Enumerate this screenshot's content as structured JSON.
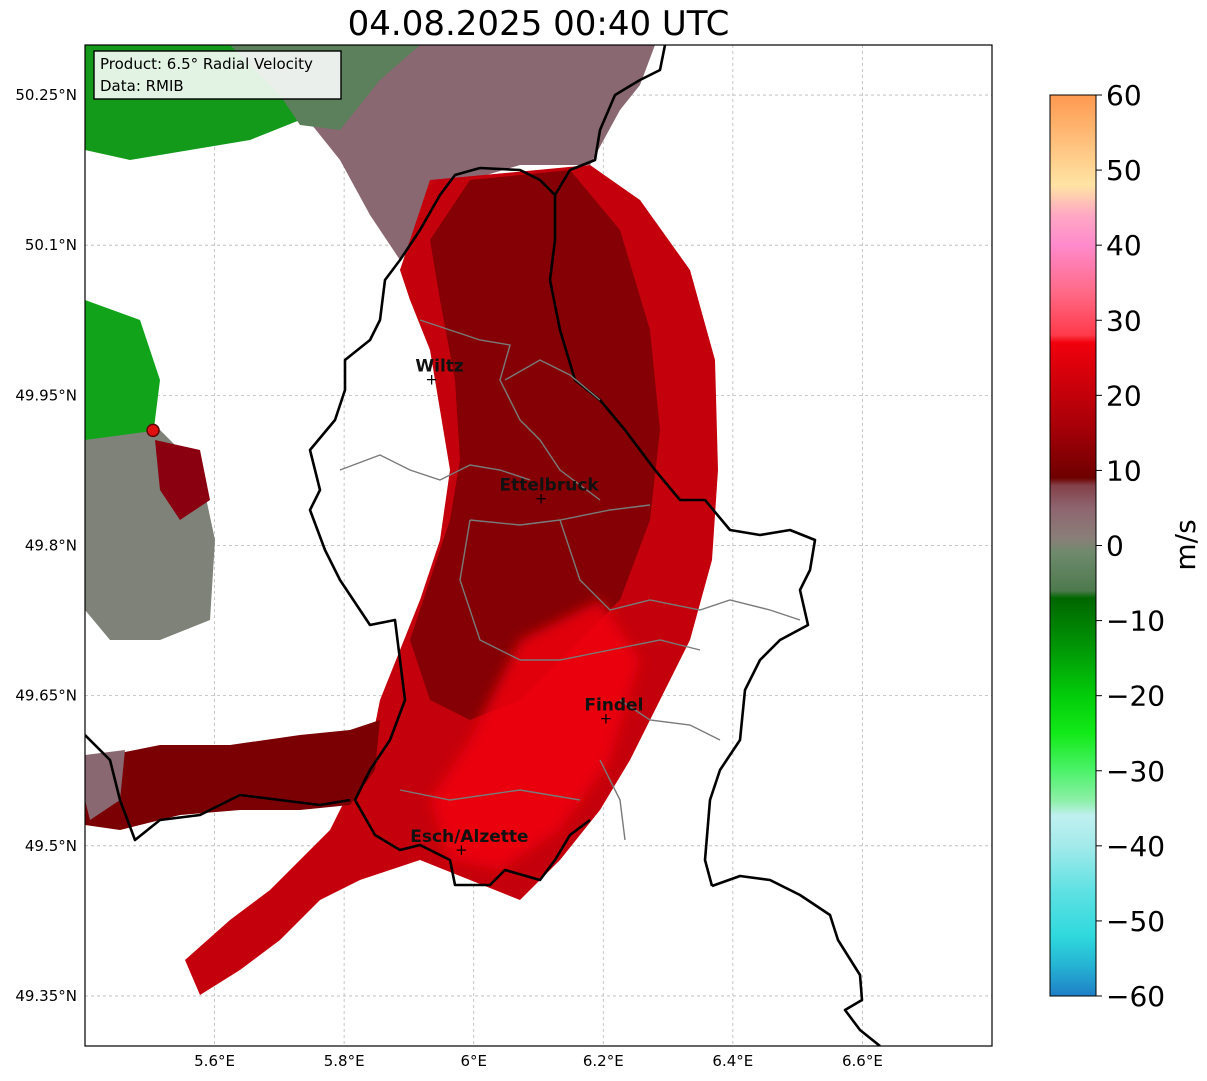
{
  "title": "04.08.2025 00:40 UTC",
  "info_box": {
    "line1": "Product: 6.5° Radial Velocity",
    "line2": "Data: RMIB"
  },
  "map": {
    "lon_range": [
      5.4,
      6.8
    ],
    "lat_range": [
      49.3,
      50.3
    ],
    "lon_ticks": [
      {
        "value": 5.6,
        "label": "5.6°E"
      },
      {
        "value": 5.8,
        "label": "5.8°E"
      },
      {
        "value": 6.0,
        "label": "6°E"
      },
      {
        "value": 6.2,
        "label": "6.2°E"
      },
      {
        "value": 6.4,
        "label": "6.4°E"
      },
      {
        "value": 6.6,
        "label": "6.6°E"
      }
    ],
    "lat_ticks": [
      {
        "value": 50.25,
        "label": "50.25°N"
      },
      {
        "value": 50.1,
        "label": "50.1°N"
      },
      {
        "value": 49.95,
        "label": "49.95°N"
      },
      {
        "value": 49.8,
        "label": "49.8°N"
      },
      {
        "value": 49.65,
        "label": "49.65°N"
      },
      {
        "value": 49.5,
        "label": "49.5°N"
      },
      {
        "value": 49.35,
        "label": "49.35°N"
      }
    ],
    "cities": [
      {
        "name": "Wiltz",
        "lon": 5.935,
        "lat": 49.966
      },
      {
        "name": "Ettelbruck",
        "lon": 6.104,
        "lat": 49.847
      },
      {
        "name": "Findel",
        "lon": 6.204,
        "lat": 49.627
      },
      {
        "name": "Esch/Alzette",
        "lon": 5.981,
        "lat": 49.496
      }
    ],
    "radar_site": {
      "lon": 5.505,
      "lat": 49.915
    },
    "gridlines": true
  },
  "colorbar": {
    "label": "m/s",
    "min": -60,
    "max": 60,
    "ticks": [
      {
        "value": 60,
        "label": "60"
      },
      {
        "value": 50,
        "label": "50"
      },
      {
        "value": 40,
        "label": "40"
      },
      {
        "value": 30,
        "label": "30"
      },
      {
        "value": 20,
        "label": "20"
      },
      {
        "value": 10,
        "label": "10"
      },
      {
        "value": 0,
        "label": "0"
      },
      {
        "value": -10,
        "label": "−10"
      },
      {
        "value": -20,
        "label": "−20"
      },
      {
        "value": -30,
        "label": "−30"
      },
      {
        "value": -40,
        "label": "−40"
      },
      {
        "value": -50,
        "label": "−50"
      },
      {
        "value": -60,
        "label": "−60"
      }
    ],
    "stops": [
      {
        "v": -60,
        "c": "#1f7fc7"
      },
      {
        "v": -56,
        "c": "#25b3d3"
      },
      {
        "v": -52,
        "c": "#2fd9dd"
      },
      {
        "v": -46,
        "c": "#5fe1e3"
      },
      {
        "v": -40,
        "c": "#a3eaea"
      },
      {
        "v": -36,
        "c": "#c0f0f0"
      },
      {
        "v": -34,
        "c": "#8ef0a8"
      },
      {
        "v": -30,
        "c": "#4cf26a"
      },
      {
        "v": -25,
        "c": "#12ea18"
      },
      {
        "v": -20,
        "c": "#02cc0a"
      },
      {
        "v": -14,
        "c": "#019a06"
      },
      {
        "v": -7,
        "c": "#006600"
      },
      {
        "v": -6,
        "c": "#4e7a4e"
      },
      {
        "v": -1,
        "c": "#6e8a6c"
      },
      {
        "v": 1,
        "c": "#8a7e78"
      },
      {
        "v": 5,
        "c": "#8e6570"
      },
      {
        "v": 8,
        "c": "#844048"
      },
      {
        "v": 9,
        "c": "#6e0000"
      },
      {
        "v": 16,
        "c": "#a80008"
      },
      {
        "v": 27,
        "c": "#f0000c"
      },
      {
        "v": 28,
        "c": "#ff3a4a"
      },
      {
        "v": 34,
        "c": "#ff6c8a"
      },
      {
        "v": 40,
        "c": "#ff8acc"
      },
      {
        "v": 44,
        "c": "#ffa8c4"
      },
      {
        "v": 48,
        "c": "#ffe4a4"
      },
      {
        "v": 54,
        "c": "#ffbe7a"
      },
      {
        "v": 60,
        "c": "#ff9950"
      }
    ]
  }
}
